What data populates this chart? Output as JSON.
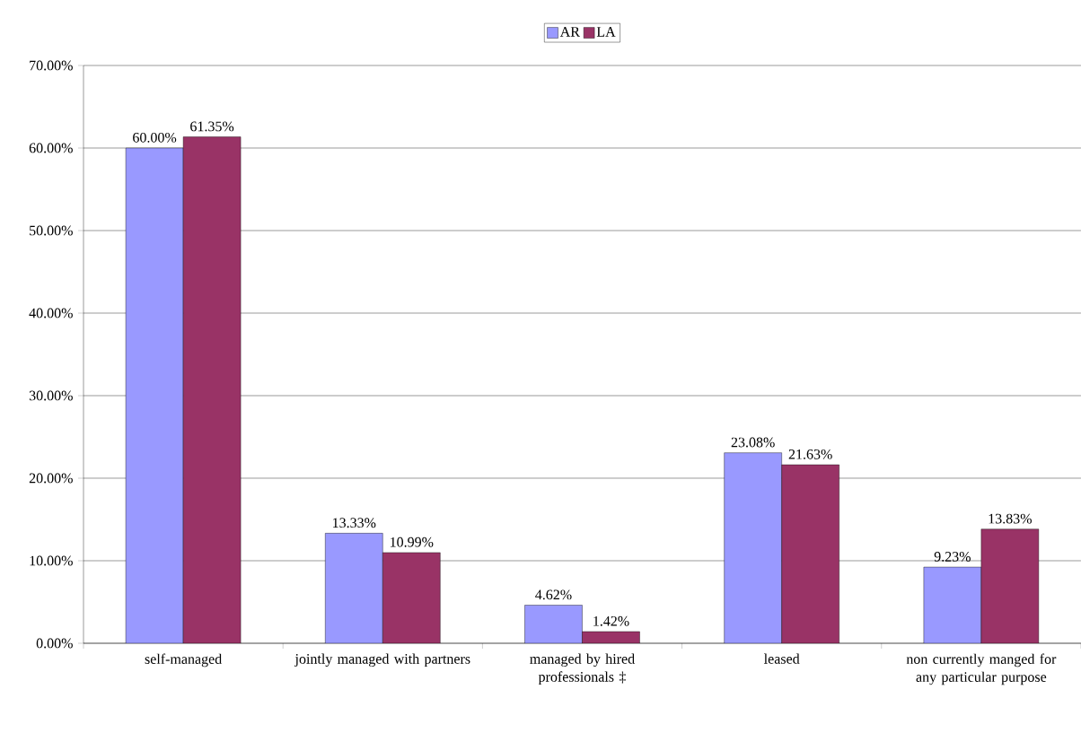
{
  "chart_data": {
    "type": "bar",
    "categories": [
      "self-managed",
      "jointly managed with partners",
      "managed by hired professionals ‡",
      "leased",
      "non currently manged for any particular purpose"
    ],
    "series": [
      {
        "name": "AR",
        "color": "#9999ff",
        "values": [
          60.0,
          13.33,
          4.62,
          23.08,
          9.23
        ],
        "value_labels": [
          "60.00%",
          "13.33%",
          "4.62%",
          "23.08%",
          "9.23%"
        ]
      },
      {
        "name": "LA",
        "color": "#993366",
        "values": [
          61.35,
          10.99,
          1.42,
          21.63,
          13.83
        ],
        "value_labels": [
          "61.35%",
          "10.99%",
          "1.42%",
          "21.63%",
          "13.83%"
        ]
      }
    ],
    "ylim": [
      0,
      70
    ],
    "yticks": [
      {
        "value": 0,
        "label": "0.00%"
      },
      {
        "value": 10,
        "label": "10.00%"
      },
      {
        "value": 20,
        "label": "20.00%"
      },
      {
        "value": 30,
        "label": "30.00%"
      },
      {
        "value": 40,
        "label": "40.00%"
      },
      {
        "value": 50,
        "label": "50.00%"
      },
      {
        "value": 60,
        "label": "60.00%"
      },
      {
        "value": 70,
        "label": "70.00%"
      }
    ],
    "grid": "y",
    "legend": "top"
  }
}
